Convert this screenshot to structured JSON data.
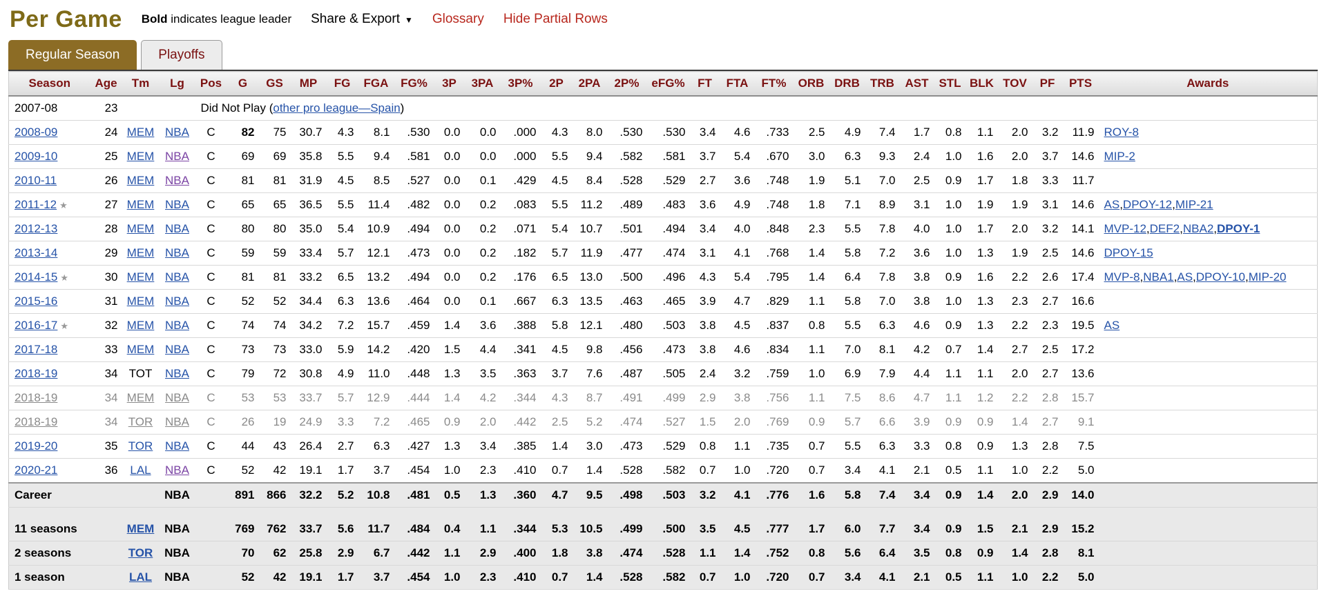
{
  "page": {
    "title": "Per Game",
    "bold_note_bold": "Bold",
    "bold_note_rest": " indicates league leader",
    "share_export_label": "Share & Export",
    "glossary": "Glossary",
    "hide_partial": "Hide Partial Rows"
  },
  "icons": {
    "caret_down": "▼",
    "all_star": "★"
  },
  "colors": {
    "link_blue": "#2653a8",
    "link_visited": "#7b44a4",
    "link_red": "#b8281e",
    "header_maroon": "#7a1111",
    "title_gold": "#7e6a18",
    "tab_brown": "#8c6c25",
    "partial_gray": "#8a8a8a",
    "footer_bg": "#e9e9e9"
  },
  "tabs": [
    {
      "label": "Regular Season",
      "active": true
    },
    {
      "label": "Playoffs",
      "active": false
    }
  ],
  "table": {
    "columns": [
      "Season",
      "Age",
      "Tm",
      "Lg",
      "Pos",
      "G",
      "GS",
      "MP",
      "FG",
      "FGA",
      "FG%",
      "3P",
      "3PA",
      "3P%",
      "2P",
      "2PA",
      "2P%",
      "eFG%",
      "FT",
      "FTA",
      "FT%",
      "ORB",
      "DRB",
      "TRB",
      "AST",
      "STL",
      "BLK",
      "TOV",
      "PF",
      "PTS",
      "Awards"
    ],
    "dnp_row": {
      "season": "2007-08",
      "age": "23",
      "prefix": "Did Not Play (",
      "link": "other pro league—Spain",
      "suffix": ")"
    },
    "rows": [
      {
        "season": "2008-09",
        "star": false,
        "age": "24",
        "tm": "MEM",
        "tm_link": true,
        "lg": "NBA",
        "lg_visited": false,
        "pos": "C",
        "stats": [
          "82",
          "75",
          "30.7",
          "4.3",
          "8.1",
          ".530",
          "0.0",
          "0.0",
          ".000",
          "4.3",
          "8.0",
          ".530",
          ".530",
          "3.4",
          "4.6",
          ".733",
          "2.5",
          "4.9",
          "7.4",
          "1.7",
          "0.8",
          "1.1",
          "2.0",
          "3.2",
          "11.9"
        ],
        "bold": [
          0
        ],
        "awards": [
          {
            "t": "ROY-8",
            "b": false
          }
        ],
        "partial": false
      },
      {
        "season": "2009-10",
        "star": false,
        "age": "25",
        "tm": "MEM",
        "tm_link": true,
        "lg": "NBA",
        "lg_visited": true,
        "pos": "C",
        "stats": [
          "69",
          "69",
          "35.8",
          "5.5",
          "9.4",
          ".581",
          "0.0",
          "0.0",
          ".000",
          "5.5",
          "9.4",
          ".582",
          ".581",
          "3.7",
          "5.4",
          ".670",
          "3.0",
          "6.3",
          "9.3",
          "2.4",
          "1.0",
          "1.6",
          "2.0",
          "3.7",
          "14.6"
        ],
        "bold": [],
        "awards": [
          {
            "t": "MIP-2",
            "b": false
          }
        ],
        "partial": false
      },
      {
        "season": "2010-11",
        "star": false,
        "age": "26",
        "tm": "MEM",
        "tm_link": true,
        "lg": "NBA",
        "lg_visited": true,
        "pos": "C",
        "stats": [
          "81",
          "81",
          "31.9",
          "4.5",
          "8.5",
          ".527",
          "0.0",
          "0.1",
          ".429",
          "4.5",
          "8.4",
          ".528",
          ".529",
          "2.7",
          "3.6",
          ".748",
          "1.9",
          "5.1",
          "7.0",
          "2.5",
          "0.9",
          "1.7",
          "1.8",
          "3.3",
          "11.7"
        ],
        "bold": [],
        "awards": [],
        "partial": false
      },
      {
        "season": "2011-12",
        "star": true,
        "age": "27",
        "tm": "MEM",
        "tm_link": true,
        "lg": "NBA",
        "lg_visited": false,
        "pos": "C",
        "stats": [
          "65",
          "65",
          "36.5",
          "5.5",
          "11.4",
          ".482",
          "0.0",
          "0.2",
          ".083",
          "5.5",
          "11.2",
          ".489",
          ".483",
          "3.6",
          "4.9",
          ".748",
          "1.8",
          "7.1",
          "8.9",
          "3.1",
          "1.0",
          "1.9",
          "1.9",
          "3.1",
          "14.6"
        ],
        "bold": [],
        "awards": [
          {
            "t": "AS",
            "b": false
          },
          {
            "t": "DPOY-12",
            "b": false
          },
          {
            "t": "MIP-21",
            "b": false
          }
        ],
        "partial": false
      },
      {
        "season": "2012-13",
        "star": false,
        "age": "28",
        "tm": "MEM",
        "tm_link": true,
        "lg": "NBA",
        "lg_visited": false,
        "pos": "C",
        "stats": [
          "80",
          "80",
          "35.0",
          "5.4",
          "10.9",
          ".494",
          "0.0",
          "0.2",
          ".071",
          "5.4",
          "10.7",
          ".501",
          ".494",
          "3.4",
          "4.0",
          ".848",
          "2.3",
          "5.5",
          "7.8",
          "4.0",
          "1.0",
          "1.7",
          "2.0",
          "3.2",
          "14.1"
        ],
        "bold": [],
        "awards": [
          {
            "t": "MVP-12",
            "b": false
          },
          {
            "t": "DEF2",
            "b": false
          },
          {
            "t": "NBA2",
            "b": false
          },
          {
            "t": "DPOY-1",
            "b": true
          }
        ],
        "partial": false
      },
      {
        "season": "2013-14",
        "star": false,
        "age": "29",
        "tm": "MEM",
        "tm_link": true,
        "lg": "NBA",
        "lg_visited": false,
        "pos": "C",
        "stats": [
          "59",
          "59",
          "33.4",
          "5.7",
          "12.1",
          ".473",
          "0.0",
          "0.2",
          ".182",
          "5.7",
          "11.9",
          ".477",
          ".474",
          "3.1",
          "4.1",
          ".768",
          "1.4",
          "5.8",
          "7.2",
          "3.6",
          "1.0",
          "1.3",
          "1.9",
          "2.5",
          "14.6"
        ],
        "bold": [],
        "awards": [
          {
            "t": "DPOY-15",
            "b": false
          }
        ],
        "partial": false
      },
      {
        "season": "2014-15",
        "star": true,
        "age": "30",
        "tm": "MEM",
        "tm_link": true,
        "lg": "NBA",
        "lg_visited": false,
        "pos": "C",
        "stats": [
          "81",
          "81",
          "33.2",
          "6.5",
          "13.2",
          ".494",
          "0.0",
          "0.2",
          ".176",
          "6.5",
          "13.0",
          ".500",
          ".496",
          "4.3",
          "5.4",
          ".795",
          "1.4",
          "6.4",
          "7.8",
          "3.8",
          "0.9",
          "1.6",
          "2.2",
          "2.6",
          "17.4"
        ],
        "bold": [],
        "awards": [
          {
            "t": "MVP-8",
            "b": false
          },
          {
            "t": "NBA1",
            "b": false
          },
          {
            "t": "AS",
            "b": false
          },
          {
            "t": "DPOY-10",
            "b": false
          },
          {
            "t": "MIP-20",
            "b": false
          }
        ],
        "partial": false
      },
      {
        "season": "2015-16",
        "star": false,
        "age": "31",
        "tm": "MEM",
        "tm_link": true,
        "lg": "NBA",
        "lg_visited": false,
        "pos": "C",
        "stats": [
          "52",
          "52",
          "34.4",
          "6.3",
          "13.6",
          ".464",
          "0.0",
          "0.1",
          ".667",
          "6.3",
          "13.5",
          ".463",
          ".465",
          "3.9",
          "4.7",
          ".829",
          "1.1",
          "5.8",
          "7.0",
          "3.8",
          "1.0",
          "1.3",
          "2.3",
          "2.7",
          "16.6"
        ],
        "bold": [],
        "awards": [],
        "partial": false
      },
      {
        "season": "2016-17",
        "star": true,
        "age": "32",
        "tm": "MEM",
        "tm_link": true,
        "lg": "NBA",
        "lg_visited": false,
        "pos": "C",
        "stats": [
          "74",
          "74",
          "34.2",
          "7.2",
          "15.7",
          ".459",
          "1.4",
          "3.6",
          ".388",
          "5.8",
          "12.1",
          ".480",
          ".503",
          "3.8",
          "4.5",
          ".837",
          "0.8",
          "5.5",
          "6.3",
          "4.6",
          "0.9",
          "1.3",
          "2.2",
          "2.3",
          "19.5"
        ],
        "bold": [],
        "awards": [
          {
            "t": "AS",
            "b": false
          }
        ],
        "partial": false
      },
      {
        "season": "2017-18",
        "star": false,
        "age": "33",
        "tm": "MEM",
        "tm_link": true,
        "lg": "NBA",
        "lg_visited": false,
        "pos": "C",
        "stats": [
          "73",
          "73",
          "33.0",
          "5.9",
          "14.2",
          ".420",
          "1.5",
          "4.4",
          ".341",
          "4.5",
          "9.8",
          ".456",
          ".473",
          "3.8",
          "4.6",
          ".834",
          "1.1",
          "7.0",
          "8.1",
          "4.2",
          "0.7",
          "1.4",
          "2.7",
          "2.5",
          "17.2"
        ],
        "bold": [],
        "awards": [],
        "partial": false
      },
      {
        "season": "2018-19",
        "star": false,
        "age": "34",
        "tm": "TOT",
        "tm_link": false,
        "lg": "NBA",
        "lg_visited": false,
        "pos": "C",
        "stats": [
          "79",
          "72",
          "30.8",
          "4.9",
          "11.0",
          ".448",
          "1.3",
          "3.5",
          ".363",
          "3.7",
          "7.6",
          ".487",
          ".505",
          "2.4",
          "3.2",
          ".759",
          "1.0",
          "6.9",
          "7.9",
          "4.4",
          "1.1",
          "1.1",
          "2.0",
          "2.7",
          "13.6"
        ],
        "bold": [],
        "awards": [],
        "partial": false
      },
      {
        "season": "2018-19",
        "star": false,
        "age": "34",
        "tm": "MEM",
        "tm_link": true,
        "lg": "NBA",
        "lg_visited": false,
        "pos": "C",
        "stats": [
          "53",
          "53",
          "33.7",
          "5.7",
          "12.9",
          ".444",
          "1.4",
          "4.2",
          ".344",
          "4.3",
          "8.7",
          ".491",
          ".499",
          "2.9",
          "3.8",
          ".756",
          "1.1",
          "7.5",
          "8.6",
          "4.7",
          "1.1",
          "1.2",
          "2.2",
          "2.8",
          "15.7"
        ],
        "bold": [],
        "awards": [],
        "partial": true
      },
      {
        "season": "2018-19",
        "star": false,
        "age": "34",
        "tm": "TOR",
        "tm_link": true,
        "lg": "NBA",
        "lg_visited": false,
        "pos": "C",
        "stats": [
          "26",
          "19",
          "24.9",
          "3.3",
          "7.2",
          ".465",
          "0.9",
          "2.0",
          ".442",
          "2.5",
          "5.2",
          ".474",
          ".527",
          "1.5",
          "2.0",
          ".769",
          "0.9",
          "5.7",
          "6.6",
          "3.9",
          "0.9",
          "0.9",
          "1.4",
          "2.7",
          "9.1"
        ],
        "bold": [],
        "awards": [],
        "partial": true
      },
      {
        "season": "2019-20",
        "star": false,
        "age": "35",
        "tm": "TOR",
        "tm_link": true,
        "lg": "NBA",
        "lg_visited": false,
        "pos": "C",
        "stats": [
          "44",
          "43",
          "26.4",
          "2.7",
          "6.3",
          ".427",
          "1.3",
          "3.4",
          ".385",
          "1.4",
          "3.0",
          ".473",
          ".529",
          "0.8",
          "1.1",
          ".735",
          "0.7",
          "5.5",
          "6.3",
          "3.3",
          "0.8",
          "0.9",
          "1.3",
          "2.8",
          "7.5"
        ],
        "bold": [],
        "awards": [],
        "partial": false
      },
      {
        "season": "2020-21",
        "star": false,
        "age": "36",
        "tm": "LAL",
        "tm_link": true,
        "lg": "NBA",
        "lg_visited": true,
        "pos": "C",
        "stats": [
          "52",
          "42",
          "19.1",
          "1.7",
          "3.7",
          ".454",
          "1.0",
          "2.3",
          ".410",
          "0.7",
          "1.4",
          ".528",
          ".582",
          "0.7",
          "1.0",
          ".720",
          "0.7",
          "3.4",
          "4.1",
          "2.1",
          "0.5",
          "1.1",
          "1.0",
          "2.2",
          "5.0"
        ],
        "bold": [],
        "awards": [],
        "partial": false
      }
    ],
    "career": {
      "label": "Career",
      "lg": "NBA",
      "stats": [
        "891",
        "866",
        "32.2",
        "5.2",
        "10.8",
        ".481",
        "0.5",
        "1.3",
        ".360",
        "4.7",
        "9.5",
        ".498",
        ".503",
        "3.2",
        "4.1",
        ".776",
        "1.6",
        "5.8",
        "7.4",
        "3.4",
        "0.9",
        "1.4",
        "2.0",
        "2.9",
        "14.0"
      ]
    },
    "team_totals": [
      {
        "label": "11 seasons",
        "tm": "MEM",
        "lg": "NBA",
        "stats": [
          "769",
          "762",
          "33.7",
          "5.6",
          "11.7",
          ".484",
          "0.4",
          "1.1",
          ".344",
          "5.3",
          "10.5",
          ".499",
          ".500",
          "3.5",
          "4.5",
          ".777",
          "1.7",
          "6.0",
          "7.7",
          "3.4",
          "0.9",
          "1.5",
          "2.1",
          "2.9",
          "15.2"
        ]
      },
      {
        "label": "2 seasons",
        "tm": "TOR",
        "lg": "NBA",
        "stats": [
          "70",
          "62",
          "25.8",
          "2.9",
          "6.7",
          ".442",
          "1.1",
          "2.9",
          ".400",
          "1.8",
          "3.8",
          ".474",
          ".528",
          "1.1",
          "1.4",
          ".752",
          "0.8",
          "5.6",
          "6.4",
          "3.5",
          "0.8",
          "0.9",
          "1.4",
          "2.8",
          "8.1"
        ]
      },
      {
        "label": "1 season",
        "tm": "LAL",
        "lg": "NBA",
        "stats": [
          "52",
          "42",
          "19.1",
          "1.7",
          "3.7",
          ".454",
          "1.0",
          "2.3",
          ".410",
          "0.7",
          "1.4",
          ".528",
          ".582",
          "0.7",
          "1.0",
          ".720",
          "0.7",
          "3.4",
          "4.1",
          "2.1",
          "0.5",
          "1.1",
          "1.0",
          "2.2",
          "5.0"
        ]
      }
    ]
  }
}
